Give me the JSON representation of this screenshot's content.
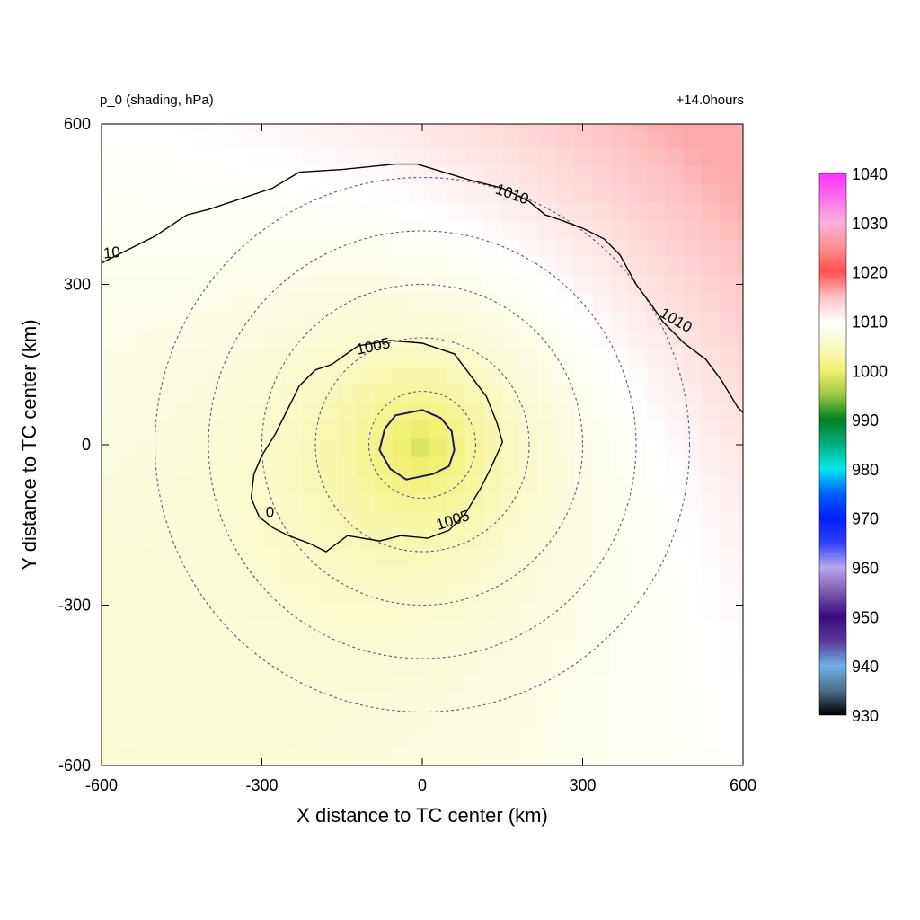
{
  "chart_data": {
    "type": "heatmap",
    "title_left": "p_0 (shading, hPa)",
    "title_right": "+14.0hours",
    "xlabel": "X distance to TC center (km)",
    "ylabel": "Y distance to TC center (km)",
    "xlim": [
      -600,
      600
    ],
    "ylim": [
      -600,
      600
    ],
    "x_ticks": [
      "-600",
      "-300",
      "0",
      "300",
      "600"
    ],
    "y_ticks": [
      "600",
      "300",
      "0",
      "-300",
      "-600"
    ],
    "x_tick_values": [
      -600,
      -300,
      0,
      300,
      600
    ],
    "y_tick_values": [
      600,
      300,
      0,
      -300,
      -600
    ],
    "colorbar": {
      "range": [
        930,
        1040
      ],
      "labels": [
        "1040",
        "1030",
        "1020",
        "1010",
        "1000",
        "990",
        "980",
        "970",
        "960",
        "950",
        "940",
        "930"
      ],
      "label_values": [
        1040,
        1030,
        1020,
        1010,
        1000,
        990,
        980,
        970,
        960,
        950,
        940,
        930
      ],
      "stops": [
        {
          "value": 930,
          "color": "#000000"
        },
        {
          "value": 935,
          "color": "#4a6f8a"
        },
        {
          "value": 940,
          "color": "#6fb0e8"
        },
        {
          "value": 945,
          "color": "#5a3a9a"
        },
        {
          "value": 950,
          "color": "#3a0a80"
        },
        {
          "value": 955,
          "color": "#7a5ab0"
        },
        {
          "value": 960,
          "color": "#b8a8e8"
        },
        {
          "value": 965,
          "color": "#3040ff"
        },
        {
          "value": 970,
          "color": "#0020ff"
        },
        {
          "value": 975,
          "color": "#0060ff"
        },
        {
          "value": 980,
          "color": "#00e8e8"
        },
        {
          "value": 985,
          "color": "#00b080"
        },
        {
          "value": 990,
          "color": "#008020"
        },
        {
          "value": 995,
          "color": "#9ac840"
        },
        {
          "value": 1000,
          "color": "#f0f070"
        },
        {
          "value": 1005,
          "color": "#fafac8"
        },
        {
          "value": 1010,
          "color": "#ffffff"
        },
        {
          "value": 1015,
          "color": "#ffc0c0"
        },
        {
          "value": 1020,
          "color": "#ff5050"
        },
        {
          "value": 1025,
          "color": "#ff9090"
        },
        {
          "value": 1030,
          "color": "#ffb0e0"
        },
        {
          "value": 1035,
          "color": "#ff70e8"
        },
        {
          "value": 1040,
          "color": "#ff30ff"
        }
      ]
    },
    "shading": {
      "center_value": 998.3,
      "field_note": "pressure rises outward from center, highest toward upper-right"
    },
    "contours": [
      {
        "level": 1000,
        "labels": [],
        "points": [
          [
            -70,
            30
          ],
          [
            -50,
            55
          ],
          [
            0,
            65
          ],
          [
            35,
            50
          ],
          [
            55,
            25
          ],
          [
            60,
            -10
          ],
          [
            50,
            -40
          ],
          [
            20,
            -55
          ],
          [
            -30,
            -65
          ],
          [
            -60,
            -45
          ],
          [
            -80,
            -10
          ],
          [
            -70,
            30
          ]
        ]
      },
      {
        "level": 1005,
        "labels": [
          {
            "text": "1005",
            "x": -90,
            "y": 175,
            "angle": -12
          },
          {
            "text": "1005",
            "x": 60,
            "y": -150,
            "angle": -18
          },
          {
            "text": "0",
            "x": -285,
            "y": -135,
            "angle": 0
          }
        ],
        "points": [
          [
            -200,
            140
          ],
          [
            -170,
            150
          ],
          [
            -120,
            185
          ],
          [
            -60,
            195
          ],
          [
            0,
            190
          ],
          [
            60,
            170
          ],
          [
            90,
            130
          ],
          [
            120,
            90
          ],
          [
            140,
            40
          ],
          [
            150,
            5
          ],
          [
            130,
            -40
          ],
          [
            110,
            -80
          ],
          [
            80,
            -130
          ],
          [
            50,
            -160
          ],
          [
            10,
            -175
          ],
          [
            -40,
            -170
          ],
          [
            -80,
            -180
          ],
          [
            -140,
            -170
          ],
          [
            -180,
            -200
          ],
          [
            -210,
            -185
          ],
          [
            -250,
            -170
          ],
          [
            -280,
            -155
          ],
          [
            -305,
            -135
          ],
          [
            -320,
            -100
          ],
          [
            -315,
            -55
          ],
          [
            -300,
            -20
          ],
          [
            -275,
            20
          ],
          [
            -250,
            70
          ],
          [
            -230,
            110
          ],
          [
            -200,
            140
          ]
        ]
      },
      {
        "level": 1010,
        "labels": [
          {
            "text": "10",
            "x": -580,
            "y": 350,
            "angle": -5
          },
          {
            "text": "1010",
            "x": 165,
            "y": 460,
            "angle": 20
          },
          {
            "text": "1010",
            "x": 470,
            "y": 225,
            "angle": 30
          }
        ],
        "points": [
          [
            -600,
            340
          ],
          [
            -560,
            360
          ],
          [
            -500,
            390
          ],
          [
            -440,
            430
          ],
          [
            -400,
            440
          ],
          [
            -340,
            460
          ],
          [
            -280,
            480
          ],
          [
            -230,
            510
          ],
          [
            -150,
            515
          ],
          [
            -50,
            525
          ],
          [
            -10,
            525
          ],
          [
            40,
            510
          ],
          [
            90,
            495
          ],
          [
            150,
            480
          ],
          [
            200,
            455
          ],
          [
            230,
            430
          ],
          [
            260,
            420
          ],
          [
            300,
            405
          ],
          [
            340,
            385
          ],
          [
            370,
            355
          ],
          [
            400,
            300
          ],
          [
            430,
            260
          ],
          [
            450,
            230
          ],
          [
            490,
            190
          ],
          [
            530,
            160
          ],
          [
            560,
            120
          ],
          [
            590,
            70
          ],
          [
            600,
            60
          ]
        ]
      }
    ],
    "rings_km": [
      100,
      200,
      300,
      400,
      500
    ]
  }
}
